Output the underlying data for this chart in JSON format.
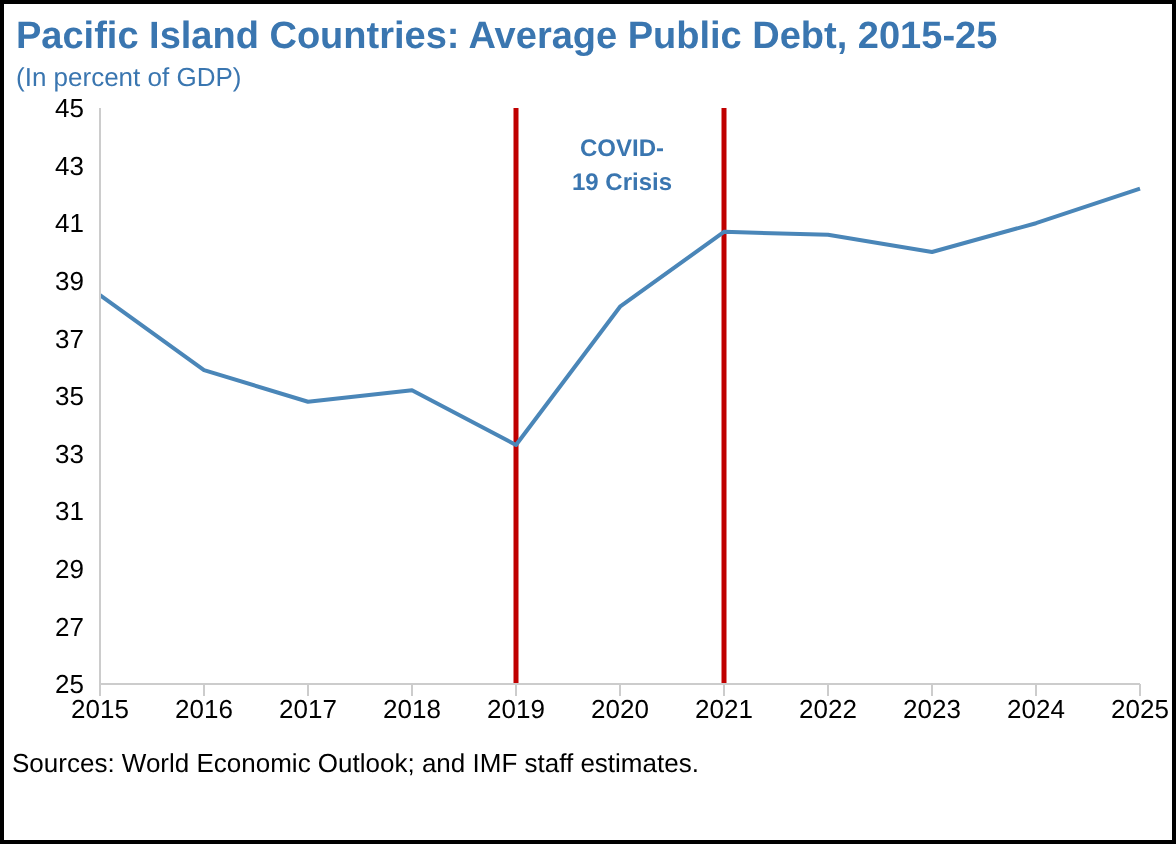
{
  "chart_data": {
    "type": "line",
    "title": "Pacific Island Countries: Average Public Debt, 2015-25",
    "subtitle": "(In percent of GDP)",
    "categories": [
      "2015",
      "2016",
      "2017",
      "2018",
      "2019",
      "2020",
      "2021",
      "2022",
      "2023",
      "2024",
      "2025"
    ],
    "series": [
      {
        "color": "#4a86b8",
        "values": [
          38.5,
          35.9,
          34.8,
          35.2,
          33.3,
          38.1,
          40.7,
          40.6,
          40.0,
          41.0,
          42.2
        ]
      }
    ],
    "ylim": [
      25,
      45
    ],
    "yticks": [
      25,
      27,
      29,
      31,
      33,
      35,
      37,
      39,
      41,
      43,
      45
    ],
    "grid": false,
    "legend": false,
    "marker": "none",
    "ref_lines": [
      {
        "axis": "x",
        "value": "2019",
        "color": "#c00000"
      },
      {
        "axis": "x",
        "value": "2021",
        "color": "#c00000"
      }
    ],
    "annotations": [
      "COVID-\n19 Crisis",
      "Sources: World Economic Outlook; and IMF staff estimates."
    ]
  }
}
